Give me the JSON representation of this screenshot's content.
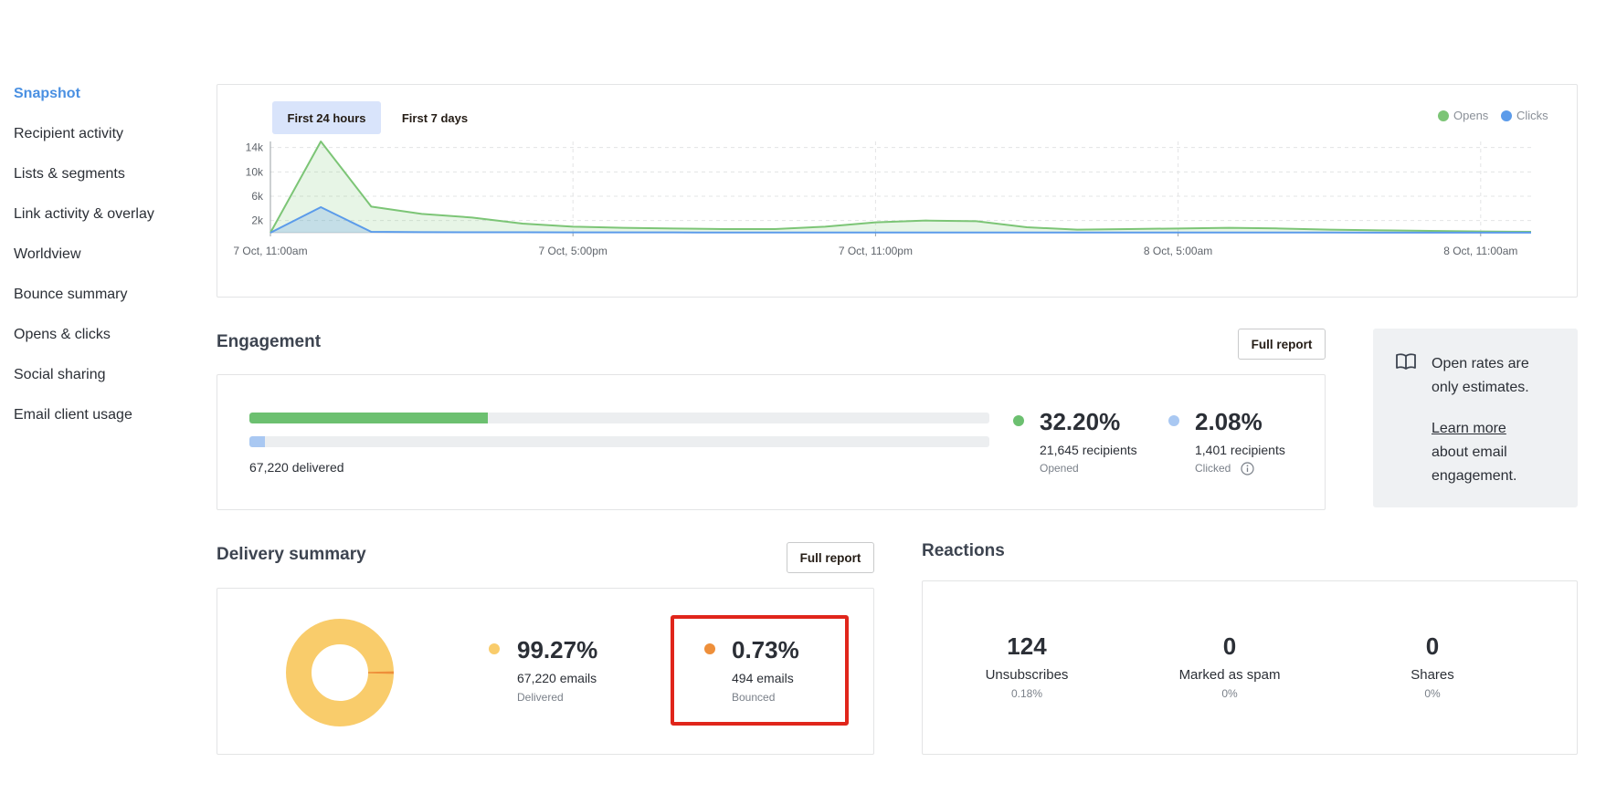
{
  "sidebar": {
    "items": [
      {
        "label": "Snapshot",
        "active": true
      },
      {
        "label": "Recipient activity"
      },
      {
        "label": "Lists & segments"
      },
      {
        "label": "Link activity & overlay"
      },
      {
        "label": "Worldview"
      },
      {
        "label": "Bounce summary"
      },
      {
        "label": "Opens & clicks"
      },
      {
        "label": "Social sharing"
      },
      {
        "label": "Email client usage"
      }
    ]
  },
  "chart": {
    "tabs": [
      {
        "label": "First 24 hours",
        "active": true
      },
      {
        "label": "First 7 days"
      }
    ],
    "legend": [
      {
        "label": "Opens",
        "color": "#7cc576"
      },
      {
        "label": "Clicks",
        "color": "#5b9bea"
      }
    ]
  },
  "chart_data": {
    "type": "area",
    "x_tick_labels": [
      "7 Oct, 11:00am",
      "7 Oct, 5:00pm",
      "7 Oct, 11:00pm",
      "8 Oct, 5:00am",
      "8 Oct, 11:00am"
    ],
    "y_tick_labels": [
      "14k",
      "10k",
      "6k",
      "2k"
    ],
    "x": [
      0,
      1,
      2,
      3,
      4,
      5,
      6,
      7,
      8,
      9,
      10,
      11,
      12,
      13,
      14,
      15,
      16,
      17,
      18,
      19,
      20,
      21,
      22,
      23,
      24,
      25
    ],
    "series": [
      {
        "name": "Opens",
        "color": "#7cc576",
        "values": [
          0,
          15000,
          4300,
          3100,
          2500,
          1500,
          1000,
          800,
          700,
          600,
          600,
          1000,
          1700,
          2000,
          1900,
          900,
          500,
          600,
          700,
          800,
          700,
          500,
          400,
          300,
          200,
          150
        ]
      },
      {
        "name": "Clicks",
        "color": "#5b9bea",
        "values": [
          0,
          4200,
          150,
          100,
          80,
          70,
          60,
          50,
          50,
          40,
          40,
          40,
          40,
          40,
          40,
          30,
          30,
          30,
          30,
          30,
          30,
          30,
          20,
          20,
          20,
          20
        ]
      }
    ],
    "ylim": [
      0,
      15000
    ],
    "grid": true,
    "legend": "top-right"
  },
  "engagement": {
    "title": "Engagement",
    "full_report": "Full report",
    "delivered_label": "67,220 delivered",
    "opened_fraction": 0.322,
    "clicked_fraction": 0.0208,
    "opened": {
      "pct": "32.20%",
      "count": "21,645 recipients",
      "label": "Opened",
      "color": "#6cc070"
    },
    "clicked": {
      "pct": "2.08%",
      "count": "1,401 recipients",
      "label": "Clicked",
      "color": "#a9c8f2"
    }
  },
  "info": {
    "line1": "Open rates are",
    "line2": "only estimates.",
    "link": "Learn more",
    "line3": "about email",
    "line4": "engagement."
  },
  "delivery": {
    "title": "Delivery summary",
    "full_report": "Full report",
    "delivered": {
      "pct": "99.27%",
      "count": "67,220 emails",
      "label": "Delivered",
      "color": "#f9cc6b",
      "fraction": 0.9927
    },
    "bounced": {
      "pct": "0.73%",
      "count": "494 emails",
      "label": "Bounced",
      "color": "#ee8f3a",
      "fraction": 0.0073
    }
  },
  "reactions": {
    "title": "Reactions",
    "items": [
      {
        "value": "124",
        "label": "Unsubscribes",
        "pct": "0.18%"
      },
      {
        "value": "0",
        "label": "Marked as spam",
        "pct": "0%"
      },
      {
        "value": "0",
        "label": "Shares",
        "pct": "0%"
      }
    ]
  },
  "highlight_color": "#e0251b"
}
